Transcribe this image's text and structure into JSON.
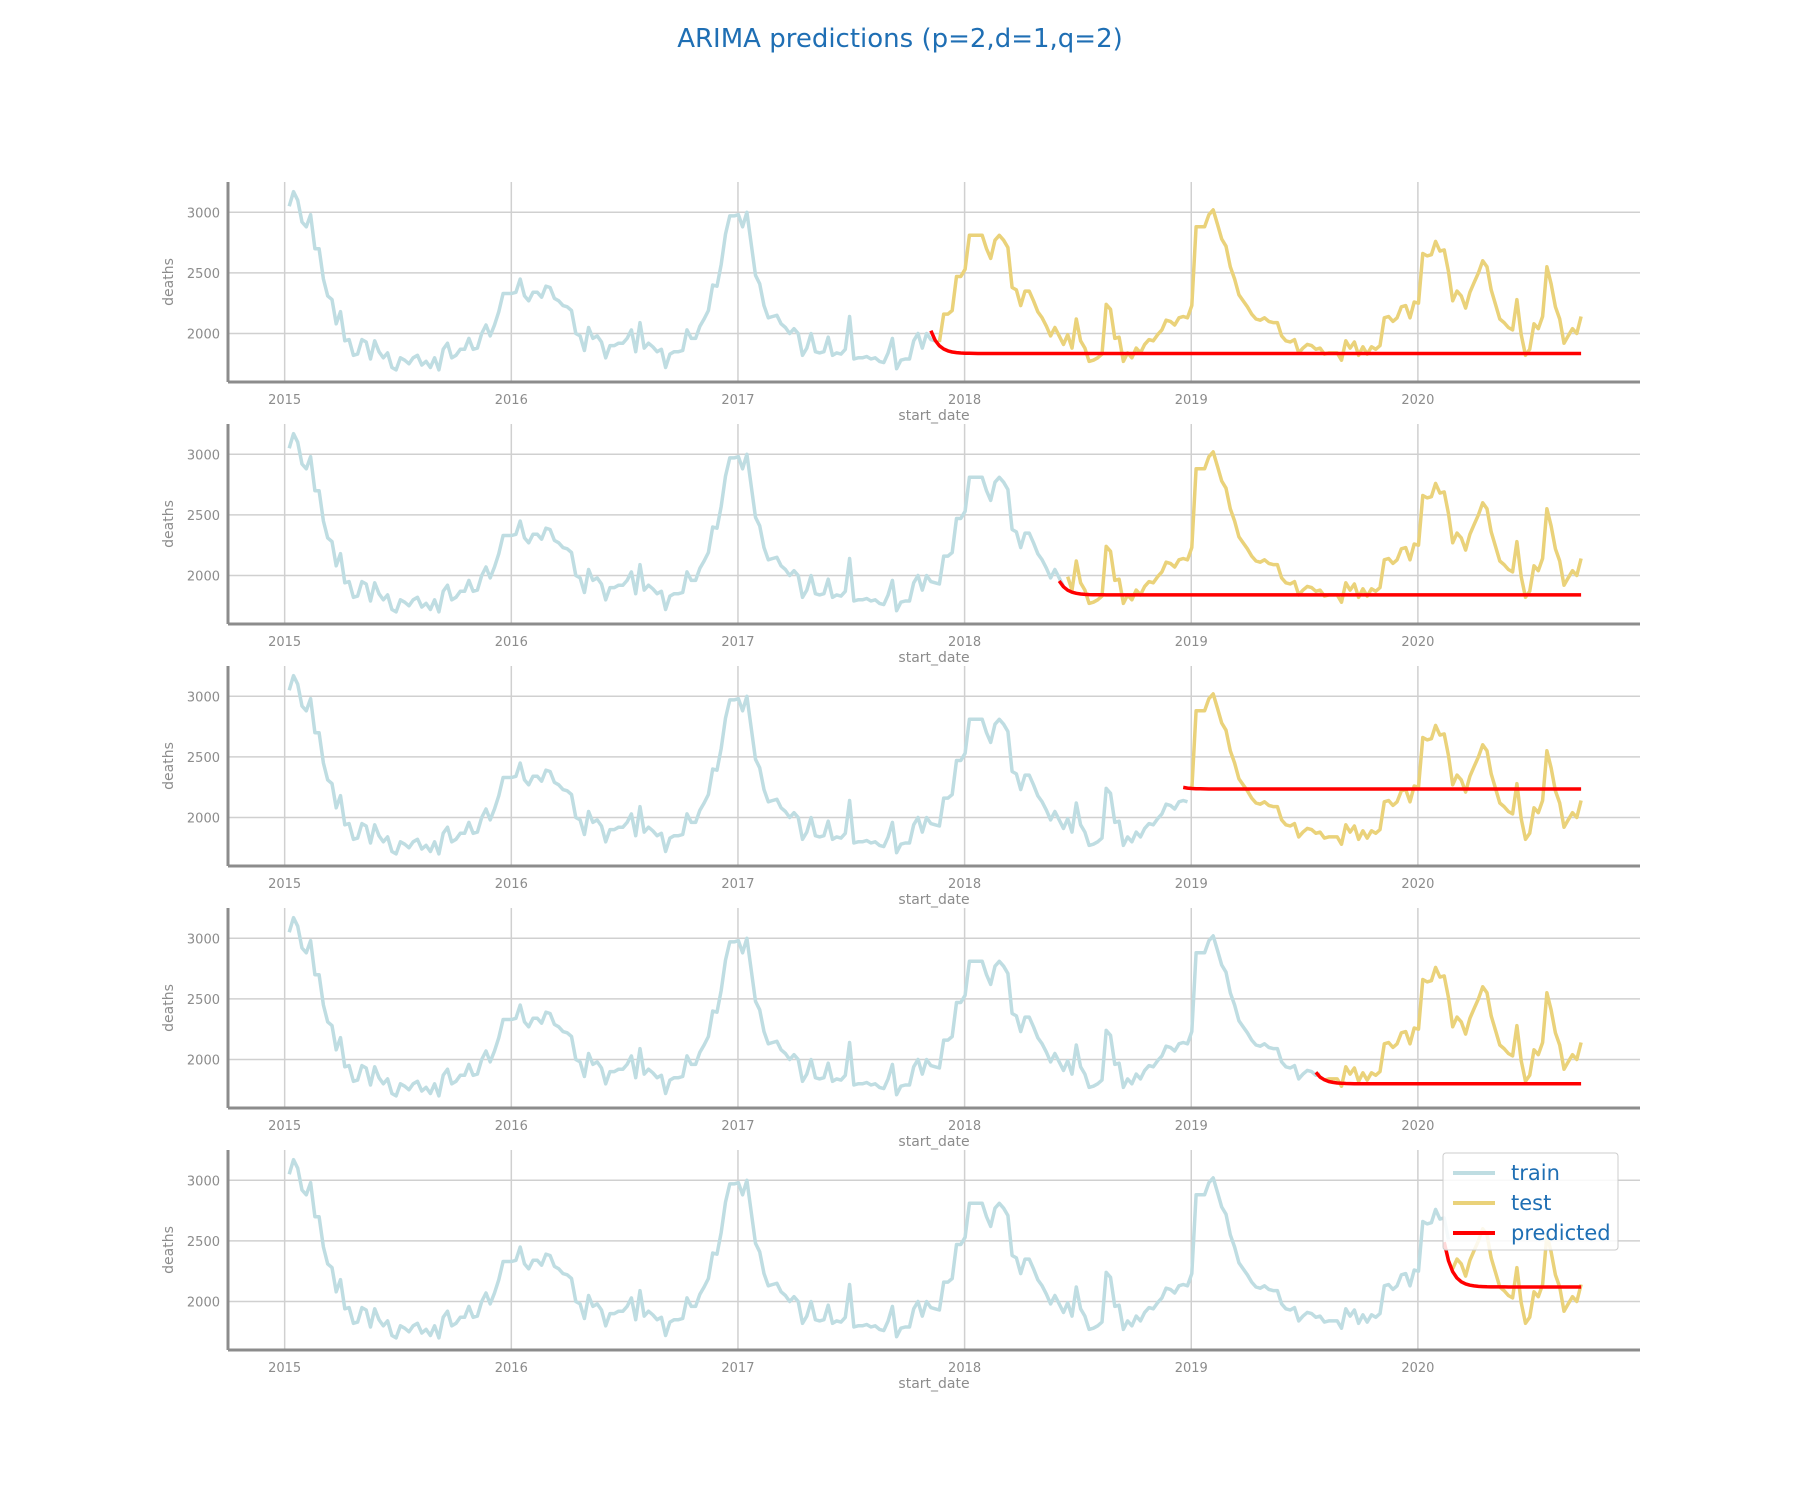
{
  "title": "ARIMA predictions (p=2,d=1,q=2)",
  "colors": {
    "train": "#bfdde2",
    "test": "#ead27a",
    "predicted": "#ff0000",
    "title": "#1f6fb4",
    "axis": "#8c8c8c",
    "grid": "#d0d0d0"
  },
  "chart_data": [
    {
      "type": "line",
      "index": 1,
      "xlabel": "start_date",
      "ylabel": "deaths",
      "ylim": [
        1600,
        3250
      ],
      "yticks": [
        2000,
        2500,
        3000
      ],
      "xlim": [
        2014.75,
        2020.98
      ],
      "xticks": [
        2015,
        2016,
        2017,
        2018,
        2019,
        2020
      ],
      "split": 2017.875,
      "pred_start": 1930,
      "pred_level": 1835
    },
    {
      "type": "line",
      "index": 2,
      "xlabel": "start_date",
      "ylabel": "deaths",
      "ylim": [
        1600,
        3250
      ],
      "yticks": [
        2000,
        2500,
        3000
      ],
      "xlim": [
        2014.75,
        2020.98
      ],
      "xticks": [
        2015,
        2016,
        2017,
        2018,
        2019,
        2020
      ],
      "split": 2018.45,
      "pred_start": 1885,
      "pred_level": 1840
    },
    {
      "type": "line",
      "index": 3,
      "xlabel": "start_date",
      "ylabel": "deaths",
      "ylim": [
        1600,
        3250
      ],
      "yticks": [
        2000,
        2500,
        3000
      ],
      "xlim": [
        2014.75,
        2020.98
      ],
      "xticks": [
        2015,
        2016,
        2017,
        2018,
        2019,
        2020
      ],
      "split": 2019.0,
      "pred_start": 2240,
      "pred_level": 2235
    },
    {
      "type": "line",
      "index": 4,
      "xlabel": "start_date",
      "ylabel": "deaths",
      "ylim": [
        1600,
        3250
      ],
      "yticks": [
        2000,
        2500,
        3000
      ],
      "xlim": [
        2014.75,
        2020.98
      ],
      "xticks": [
        2015,
        2016,
        2017,
        2018,
        2019,
        2020
      ],
      "split": 2019.58,
      "pred_start": 1840,
      "pred_level": 1800
    },
    {
      "type": "line",
      "index": 5,
      "xlabel": "start_date",
      "ylabel": "deaths",
      "ylim": [
        1600,
        3250
      ],
      "yticks": [
        2000,
        2500,
        3000
      ],
      "xlim": [
        2014.75,
        2020.98
      ],
      "xticks": [
        2015,
        2016,
        2017,
        2018,
        2019,
        2020
      ],
      "split": 2020.15,
      "pred_start": 2260,
      "pred_level": 2120,
      "legend": {
        "placement": "top-right",
        "entries": [
          "train",
          "test",
          "predicted"
        ]
      }
    }
  ],
  "series_points": {
    "x_start": 2015.02,
    "x_end": 2020.72,
    "y": [
      3050,
      3170,
      3100,
      2920,
      2880,
      2980,
      2700,
      2700,
      2450,
      2310,
      2280,
      2080,
      2180,
      1940,
      1950,
      1820,
      1830,
      1950,
      1930,
      1790,
      1940,
      1850,
      1800,
      1840,
      1720,
      1700,
      1800,
      1780,
      1750,
      1800,
      1820,
      1740,
      1770,
      1720,
      1800,
      1700,
      1870,
      1920,
      1800,
      1820,
      1870,
      1870,
      1960,
      1870,
      1880,
      2000,
      2070,
      1980,
      2070,
      2180,
      2330,
      2330,
      2330,
      2340,
      2450,
      2310,
      2270,
      2340,
      2340,
      2300,
      2390,
      2380,
      2290,
      2270,
      2230,
      2220,
      2190,
      2000,
      1980,
      1860,
      2050,
      1960,
      1980,
      1930,
      1800,
      1900,
      1900,
      1920,
      1920,
      1960,
      2030,
      1850,
      2090,
      1880,
      1920,
      1890,
      1850,
      1870,
      1720,
      1830,
      1850,
      1850,
      1860,
      2030,
      1960,
      1960,
      2060,
      2120,
      2190,
      2400,
      2390,
      2570,
      2820,
      2970,
      2970,
      2980,
      2880,
      3000,
      2740,
      2480,
      2410,
      2230,
      2130,
      2140,
      2150,
      2080,
      2050,
      2000,
      2040,
      2000,
      1820,
      1880,
      2000,
      1850,
      1840,
      1850,
      1970,
      1820,
      1840,
      1830,
      1870,
      2140,
      1790,
      1800,
      1800,
      1810,
      1790,
      1800,
      1770,
      1760,
      1840,
      1960,
      1710,
      1780,
      1790,
      1790,
      1940,
      2000,
      1880,
      2000,
      1950,
      1940,
      1930,
      2160,
      2160,
      2190,
      2470,
      2470,
      2530,
      2810,
      2810,
      2810,
      2810,
      2700,
      2620,
      2770,
      2810,
      2770,
      2710,
      2380,
      2360,
      2230,
      2350,
      2350,
      2270,
      2180,
      2130,
      2060,
      1980,
      2050,
      1980,
      1910,
      1990,
      1880,
      2120,
      1940,
      1880,
      1770,
      1780,
      1800,
      1830,
      2240,
      2200,
      1960,
      1970,
      1770,
      1840,
      1800,
      1880,
      1840,
      1910,
      1950,
      1940,
      1990,
      2030,
      2110,
      2100,
      2070,
      2130,
      2140,
      2130,
      2230,
      2880,
      2880,
      2880,
      2980,
      3020,
      2900,
      2780,
      2720,
      2550,
      2450,
      2320,
      2270,
      2220,
      2160,
      2120,
      2110,
      2130,
      2100,
      2090,
      2090,
      1980,
      1940,
      1930,
      1950,
      1840,
      1880,
      1910,
      1900,
      1870,
      1880,
      1830,
      1840,
      1840,
      1840,
      1780,
      1940,
      1880,
      1930,
      1820,
      1890,
      1830,
      1890,
      1870,
      1900,
      2130,
      2140,
      2100,
      2130,
      2220,
      2230,
      2130,
      2260,
      2250,
      2660,
      2640,
      2650,
      2760,
      2680,
      2690,
      2510,
      2270,
      2350,
      2310,
      2210,
      2340,
      2420,
      2500,
      2600,
      2550,
      2360,
      2240,
      2120,
      2090,
      2050,
      2030,
      2280,
      1990,
      1820,
      1870,
      2080,
      2040,
      2140,
      2550,
      2410,
      2220,
      2120,
      1920,
      1980,
      2040,
      2000,
      2140
    ]
  },
  "legend": {
    "train": "train",
    "test": "test",
    "predicted": "predicted"
  }
}
